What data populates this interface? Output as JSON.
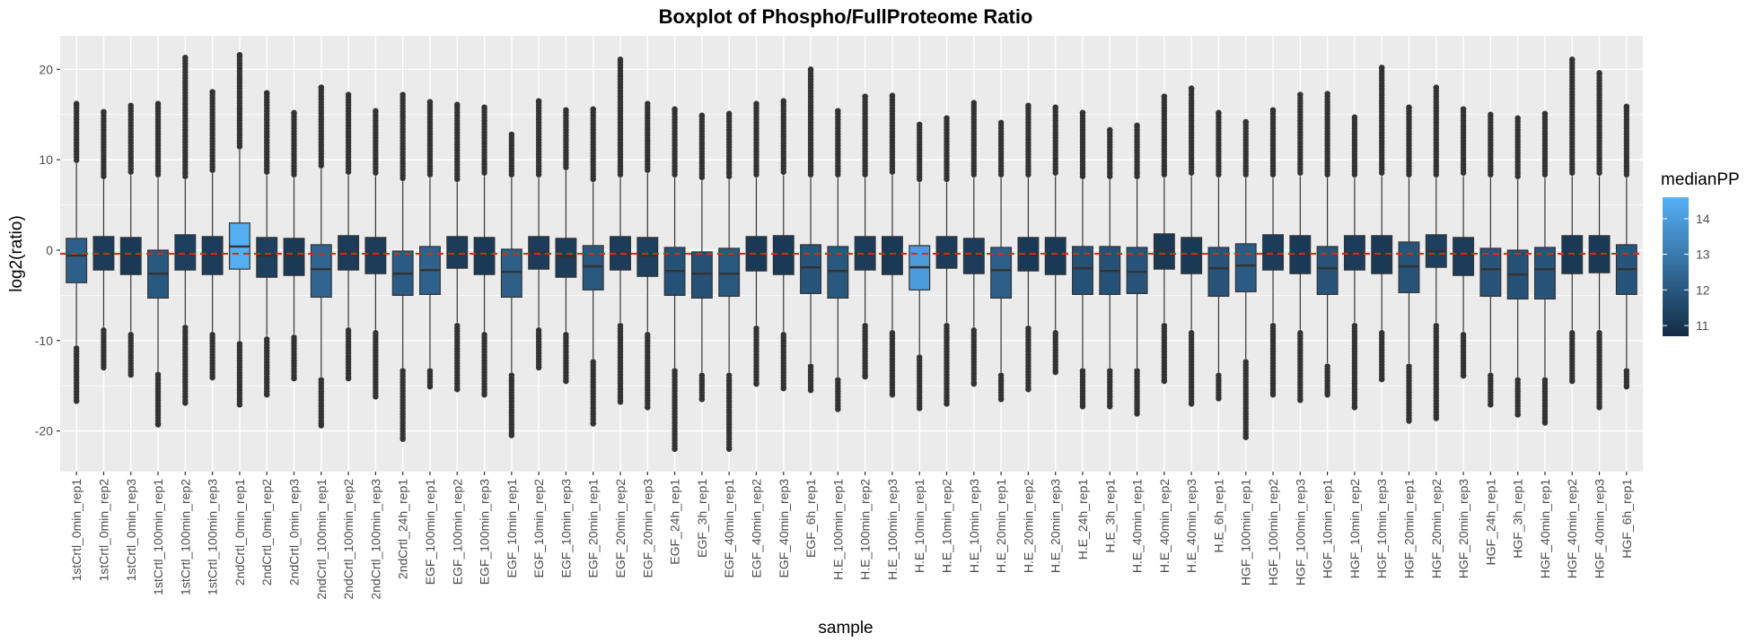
{
  "chart_data": {
    "type": "boxplot",
    "title": "Boxplot of Phospho/FullProteome Ratio",
    "xlabel": "sample",
    "ylabel": "log2(ratio)",
    "ylim": [
      -24.5,
      23.7
    ],
    "yticks": [
      -20,
      -10,
      0,
      10,
      20
    ],
    "reference_line": {
      "y": -0.4,
      "color": "#e0251b",
      "style": "dashed"
    },
    "grid": true,
    "legend": {
      "title": "medianPP",
      "position": "right",
      "range": [
        10.7,
        14.6
      ],
      "ticks": [
        11,
        12,
        13,
        14
      ],
      "low_color": "#132b43",
      "high_color": "#56b1f7"
    },
    "categories": [
      "1stCrtl_0min_rep1",
      "1stCrtl_0min_rep2",
      "1stCrtl_0min_rep3",
      "1stCrtl_100min_rep1",
      "1stCrtl_100min_rep2",
      "1stCrtl_100min_rep3",
      "2ndCrtl_0min_rep1",
      "2ndCrtl_0min_rep2",
      "2ndCrtl_0min_rep3",
      "2ndCrtl_100min_rep1",
      "2ndCrtl_100min_rep2",
      "2ndCrtl_100min_rep3",
      "2ndCrtl_24h_rep1",
      "EGF_100min_rep1",
      "EGF_100min_rep2",
      "EGF_100min_rep3",
      "EGF_10min_rep1",
      "EGF_10min_rep2",
      "EGF_10min_rep3",
      "EGF_20min_rep1",
      "EGF_20min_rep2",
      "EGF_20min_rep3",
      "EGF_24h_rep1",
      "EGF_3h_rep1",
      "EGF_40min_rep1",
      "EGF_40min_rep2",
      "EGF_40min_rep3",
      "EGF_6h_rep1",
      "H.E_100min_rep1",
      "H.E_100min_rep2",
      "H.E_100min_rep3",
      "H.E_10min_rep1",
      "H.E_10min_rep2",
      "H.E_10min_rep3",
      "H.E_20min_rep1",
      "H.E_20min_rep2",
      "H.E_20min_rep3",
      "H.E_24h_rep1",
      "H.E_3h_rep1",
      "H.E_40min_rep1",
      "H.E_40min_rep2",
      "H.E_40min_rep3",
      "H.E_6h_rep1",
      "HGF_100min_rep1",
      "HGF_100min_rep2",
      "HGF_100min_rep3",
      "HGF_10min_rep1",
      "HGF_10min_rep2",
      "HGF_10min_rep3",
      "HGF_20min_rep1",
      "HGF_20min_rep2",
      "HGF_20min_rep3",
      "HGF_24h_rep1",
      "HGF_3h_rep1",
      "HGF_40min_rep1",
      "HGF_40min_rep2",
      "HGF_40min_rep3",
      "HGF_6h_rep1"
    ],
    "boxes": [
      {
        "q1": -3.6,
        "median": -0.6,
        "q3": 1.3,
        "wlo": -10.5,
        "whi": 9.6,
        "outlo": -16.7,
        "outhi": 16.2,
        "color": 12.2
      },
      {
        "q1": -2.2,
        "median": -0.4,
        "q3": 1.5,
        "wlo": -8.5,
        "whi": 7.8,
        "outlo": -13.0,
        "outhi": 15.3,
        "color": 11.2
      },
      {
        "q1": -2.7,
        "median": -0.6,
        "q3": 1.4,
        "wlo": -9.0,
        "whi": 8.3,
        "outlo": -13.8,
        "outhi": 16.0,
        "color": 11.1
      },
      {
        "q1": -5.3,
        "median": -2.6,
        "q3": 0.0,
        "wlo": -13.4,
        "whi": 8.0,
        "outlo": -19.3,
        "outhi": 16.2,
        "color": 12.0
      },
      {
        "q1": -2.2,
        "median": -0.3,
        "q3": 1.7,
        "wlo": -8.2,
        "whi": 7.8,
        "outlo": -16.9,
        "outhi": 21.3,
        "color": 11.3
      },
      {
        "q1": -2.7,
        "median": -0.5,
        "q3": 1.5,
        "wlo": -9.0,
        "whi": 8.5,
        "outlo": -14.1,
        "outhi": 17.5,
        "color": 11.2
      },
      {
        "q1": -2.1,
        "median": 0.4,
        "q3": 3.0,
        "wlo": -10.0,
        "whi": 11.1,
        "outlo": -17.1,
        "outhi": 21.6,
        "color": 14.5
      },
      {
        "q1": -3.0,
        "median": -0.6,
        "q3": 1.4,
        "wlo": -9.5,
        "whi": 8.3,
        "outlo": -16.0,
        "outhi": 17.4,
        "color": 11.3
      },
      {
        "q1": -2.8,
        "median": -0.6,
        "q3": 1.3,
        "wlo": -9.3,
        "whi": 8.0,
        "outlo": -14.2,
        "outhi": 15.2,
        "color": 11.1
      },
      {
        "q1": -5.2,
        "median": -2.1,
        "q3": 0.6,
        "wlo": -14.0,
        "whi": 9.0,
        "outlo": -19.4,
        "outhi": 18.0,
        "color": 12.4
      },
      {
        "q1": -2.2,
        "median": -0.2,
        "q3": 1.6,
        "wlo": -8.5,
        "whi": 8.3,
        "outlo": -14.2,
        "outhi": 17.2,
        "color": 11.2
      },
      {
        "q1": -2.6,
        "median": -0.5,
        "q3": 1.4,
        "wlo": -8.8,
        "whi": 8.2,
        "outlo": -16.2,
        "outhi": 15.4,
        "color": 11.2
      },
      {
        "q1": -5.0,
        "median": -2.6,
        "q3": -0.1,
        "wlo": -13.0,
        "whi": 7.6,
        "outlo": -20.9,
        "outhi": 17.2,
        "color": 12.1
      },
      {
        "q1": -4.9,
        "median": -2.2,
        "q3": 0.4,
        "wlo": -13.0,
        "whi": 8.0,
        "outlo": -15.1,
        "outhi": 16.4,
        "color": 12.3
      },
      {
        "q1": -2.0,
        "median": -0.3,
        "q3": 1.5,
        "wlo": -8.0,
        "whi": 7.5,
        "outlo": -15.4,
        "outhi": 16.1,
        "color": 11.2
      },
      {
        "q1": -2.7,
        "median": -0.5,
        "q3": 1.4,
        "wlo": -9.0,
        "whi": 8.2,
        "outlo": -16.0,
        "outhi": 15.8,
        "color": 11.1
      },
      {
        "q1": -5.2,
        "median": -2.4,
        "q3": 0.1,
        "wlo": -13.5,
        "whi": 8.0,
        "outlo": -20.5,
        "outhi": 12.8,
        "color": 12.2
      },
      {
        "q1": -2.1,
        "median": -0.2,
        "q3": 1.5,
        "wlo": -8.5,
        "whi": 8.0,
        "outlo": -13.0,
        "outhi": 16.5,
        "color": 11.2
      },
      {
        "q1": -3.0,
        "median": -0.7,
        "q3": 1.3,
        "wlo": -9.0,
        "whi": 8.8,
        "outlo": -14.5,
        "outhi": 15.5,
        "color": 11.2
      },
      {
        "q1": -4.4,
        "median": -1.8,
        "q3": 0.5,
        "wlo": -12.0,
        "whi": 7.5,
        "outlo": -19.2,
        "outhi": 15.6,
        "color": 12.0
      },
      {
        "q1": -2.2,
        "median": -0.3,
        "q3": 1.5,
        "wlo": -8.0,
        "whi": 8.0,
        "outlo": -16.8,
        "outhi": 21.1,
        "color": 11.2
      },
      {
        "q1": -2.9,
        "median": -0.6,
        "q3": 1.4,
        "wlo": -9.0,
        "whi": 8.5,
        "outlo": -17.4,
        "outhi": 16.2,
        "color": 11.3
      },
      {
        "q1": -5.0,
        "median": -2.3,
        "q3": 0.3,
        "wlo": -13.0,
        "whi": 8.0,
        "outlo": -22.0,
        "outhi": 15.6,
        "color": 11.8
      },
      {
        "q1": -5.3,
        "median": -2.6,
        "q3": -0.2,
        "wlo": -13.5,
        "whi": 7.7,
        "outlo": -16.5,
        "outhi": 14.9,
        "color": 11.8
      },
      {
        "q1": -5.1,
        "median": -2.6,
        "q3": 0.2,
        "wlo": -13.5,
        "whi": 7.8,
        "outlo": -22.0,
        "outhi": 15.1,
        "color": 12.0
      },
      {
        "q1": -2.3,
        "median": -0.4,
        "q3": 1.5,
        "wlo": -8.3,
        "whi": 8.0,
        "outlo": -14.8,
        "outhi": 16.2,
        "color": 11.1
      },
      {
        "q1": -2.7,
        "median": -0.5,
        "q3": 1.6,
        "wlo": -9.0,
        "whi": 8.3,
        "outlo": -15.3,
        "outhi": 16.5,
        "color": 11.1
      },
      {
        "q1": -4.8,
        "median": -1.9,
        "q3": 0.6,
        "wlo": -12.5,
        "whi": 8.0,
        "outlo": -15.5,
        "outhi": 20.0,
        "color": 11.9
      },
      {
        "q1": -5.3,
        "median": -2.3,
        "q3": 0.4,
        "wlo": -14.0,
        "whi": 8.0,
        "outlo": -17.6,
        "outhi": 15.4,
        "color": 12.0
      },
      {
        "q1": -2.2,
        "median": -0.3,
        "q3": 1.5,
        "wlo": -8.0,
        "whi": 8.0,
        "outlo": -14.0,
        "outhi": 17.0,
        "color": 11.2
      },
      {
        "q1": -2.7,
        "median": -0.5,
        "q3": 1.5,
        "wlo": -8.8,
        "whi": 8.3,
        "outlo": -16.0,
        "outhi": 17.1,
        "color": 11.1
      },
      {
        "q1": -4.4,
        "median": -1.9,
        "q3": 0.5,
        "wlo": -11.5,
        "whi": 7.5,
        "outlo": -17.5,
        "outhi": 13.9,
        "color": 14.0
      },
      {
        "q1": -2.0,
        "median": -0.2,
        "q3": 1.5,
        "wlo": -8.0,
        "whi": 7.5,
        "outlo": -17.0,
        "outhi": 14.6,
        "color": 11.2
      },
      {
        "q1": -2.6,
        "median": -0.5,
        "q3": 1.3,
        "wlo": -8.5,
        "whi": 8.0,
        "outlo": -14.8,
        "outhi": 16.3,
        "color": 11.2
      },
      {
        "q1": -5.3,
        "median": -2.2,
        "q3": 0.3,
        "wlo": -13.5,
        "whi": 8.0,
        "outlo": -16.5,
        "outhi": 14.1,
        "color": 12.2
      },
      {
        "q1": -2.3,
        "median": -0.4,
        "q3": 1.4,
        "wlo": -8.3,
        "whi": 8.0,
        "outlo": -15.4,
        "outhi": 16.0,
        "color": 11.1
      },
      {
        "q1": -2.7,
        "median": -0.5,
        "q3": 1.4,
        "wlo": -8.8,
        "whi": 8.2,
        "outlo": -13.5,
        "outhi": 15.8,
        "color": 11.1
      },
      {
        "q1": -4.9,
        "median": -2.0,
        "q3": 0.4,
        "wlo": -13.0,
        "whi": 7.8,
        "outlo": -17.3,
        "outhi": 15.2,
        "color": 11.8
      },
      {
        "q1": -4.9,
        "median": -2.3,
        "q3": 0.4,
        "wlo": -13.0,
        "whi": 7.8,
        "outlo": -17.3,
        "outhi": 13.3,
        "color": 11.8
      },
      {
        "q1": -4.8,
        "median": -2.4,
        "q3": 0.3,
        "wlo": -13.0,
        "whi": 7.8,
        "outlo": -18.1,
        "outhi": 13.8,
        "color": 11.9
      },
      {
        "q1": -2.1,
        "median": -0.1,
        "q3": 1.8,
        "wlo": -8.0,
        "whi": 8.0,
        "outlo": -14.5,
        "outhi": 17.0,
        "color": 11.1
      },
      {
        "q1": -2.6,
        "median": -0.5,
        "q3": 1.4,
        "wlo": -8.8,
        "whi": 8.2,
        "outlo": -17.0,
        "outhi": 17.9,
        "color": 11.1
      },
      {
        "q1": -5.1,
        "median": -2.0,
        "q3": 0.3,
        "wlo": -13.5,
        "whi": 8.0,
        "outlo": -16.4,
        "outhi": 15.2,
        "color": 11.9
      },
      {
        "q1": -4.6,
        "median": -1.7,
        "q3": 0.7,
        "wlo": -12.0,
        "whi": 8.0,
        "outlo": -20.7,
        "outhi": 14.2,
        "color": 12.1
      },
      {
        "q1": -2.2,
        "median": -0.3,
        "q3": 1.7,
        "wlo": -8.0,
        "whi": 8.0,
        "outlo": -16.0,
        "outhi": 15.5,
        "color": 11.2
      },
      {
        "q1": -2.6,
        "median": -0.4,
        "q3": 1.6,
        "wlo": -8.8,
        "whi": 8.2,
        "outlo": -16.6,
        "outhi": 17.2,
        "color": 11.1
      },
      {
        "q1": -4.9,
        "median": -2.0,
        "q3": 0.4,
        "wlo": -12.5,
        "whi": 8.0,
        "outlo": -16.0,
        "outhi": 17.3,
        "color": 11.9
      },
      {
        "q1": -2.2,
        "median": -0.3,
        "q3": 1.6,
        "wlo": -8.0,
        "whi": 8.0,
        "outlo": -17.4,
        "outhi": 14.7,
        "color": 11.2
      },
      {
        "q1": -2.6,
        "median": -0.4,
        "q3": 1.6,
        "wlo": -8.8,
        "whi": 8.2,
        "outlo": -14.3,
        "outhi": 20.2,
        "color": 11.1
      },
      {
        "q1": -4.7,
        "median": -1.8,
        "q3": 0.9,
        "wlo": -12.5,
        "whi": 8.0,
        "outlo": -18.9,
        "outhi": 15.8,
        "color": 11.9
      },
      {
        "q1": -1.9,
        "median": -0.1,
        "q3": 1.7,
        "wlo": -8.0,
        "whi": 8.0,
        "outlo": -18.6,
        "outhi": 18.0,
        "color": 11.3
      },
      {
        "q1": -2.8,
        "median": -0.5,
        "q3": 1.4,
        "wlo": -9.0,
        "whi": 8.2,
        "outlo": -13.9,
        "outhi": 15.6,
        "color": 11.2
      },
      {
        "q1": -5.1,
        "median": -2.1,
        "q3": 0.2,
        "wlo": -13.5,
        "whi": 8.0,
        "outlo": -17.1,
        "outhi": 15.0,
        "color": 11.9
      },
      {
        "q1": -5.4,
        "median": -2.7,
        "q3": 0.0,
        "wlo": -14.0,
        "whi": 7.8,
        "outlo": -18.2,
        "outhi": 14.6,
        "color": 11.8
      },
      {
        "q1": -5.4,
        "median": -2.1,
        "q3": 0.3,
        "wlo": -14.0,
        "whi": 8.0,
        "outlo": -19.1,
        "outhi": 15.1,
        "color": 11.9
      },
      {
        "q1": -2.6,
        "median": -0.4,
        "q3": 1.6,
        "wlo": -8.8,
        "whi": 8.2,
        "outlo": -14.5,
        "outhi": 21.1,
        "color": 11.1
      },
      {
        "q1": -2.5,
        "median": -0.4,
        "q3": 1.6,
        "wlo": -8.8,
        "whi": 8.2,
        "outlo": -17.4,
        "outhi": 19.6,
        "color": 11.1
      },
      {
        "q1": -4.9,
        "median": -2.1,
        "q3": 0.6,
        "wlo": -13.0,
        "whi": 8.0,
        "outlo": -15.1,
        "outhi": 15.9,
        "color": 11.9
      }
    ]
  }
}
